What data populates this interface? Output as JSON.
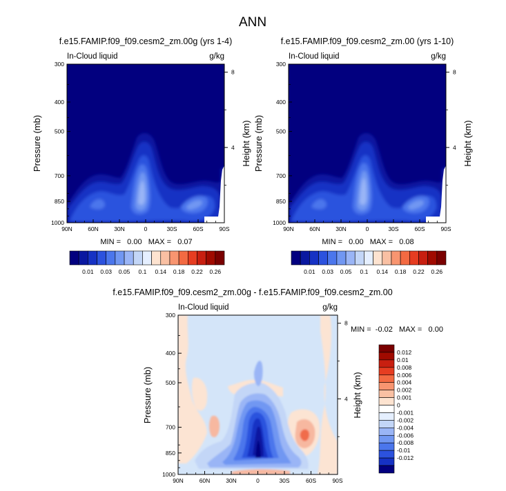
{
  "figure_title": "ANN",
  "colors": {
    "ramp": [
      "#02007f",
      "#0a18a0",
      "#1632c4",
      "#2c52de",
      "#4b76ec",
      "#7197f2",
      "#9ab5f6",
      "#c3d6f7",
      "#e5efff",
      "#fde3d0",
      "#f9c0a3",
      "#f89570",
      "#f36a42",
      "#e63d21",
      "#c81f10",
      "#a00a00",
      "#7a0000"
    ],
    "diff_zero": "#d4e5f9",
    "diff_pos_light": "#fce4d3",
    "diff_pos_mid": "#f7b8a0",
    "diff_pos_strong": "#f06c4c"
  },
  "chart_data": [
    {
      "type": "heatmap",
      "id": "panel-a",
      "title": "f.e15.FAMIP.f09_f09.cesm2_zm.00g (yrs 1-4)",
      "left_label": "In-Cloud liquid",
      "right_label": "g/kg",
      "ylabel": "Pressure (mb)",
      "ylabel_right": "Height (km)",
      "x_ticks": [
        "90N",
        "60N",
        "30N",
        "0",
        "30S",
        "60S",
        "90S"
      ],
      "y_ticks": [
        "300",
        "400",
        "500",
        "700",
        "850",
        "1000"
      ],
      "y_ticks_right": [
        "8",
        "4"
      ],
      "ylim": [
        1000,
        300
      ],
      "stats": "MIN =   0.00   MAX =   0.07",
      "colorbar_labels": [
        "0.01",
        "0.03",
        "0.05",
        "0.1",
        "0.14",
        "0.18",
        "0.22",
        "0.26"
      ]
    },
    {
      "type": "heatmap",
      "id": "panel-b",
      "title": "f.e15.FAMIP.f09_f09.cesm2_zm.00 (yrs 1-10)",
      "left_label": "In-Cloud liquid",
      "right_label": "g/kg",
      "ylabel": "Pressure (mb)",
      "ylabel_right": "Height (km)",
      "x_ticks": [
        "90N",
        "60N",
        "30N",
        "0",
        "30S",
        "60S",
        "90S"
      ],
      "y_ticks": [
        "300",
        "400",
        "500",
        "700",
        "850",
        "1000"
      ],
      "y_ticks_right": [
        "8",
        "4"
      ],
      "ylim": [
        1000,
        300
      ],
      "stats": "MIN =   0.00   MAX =   0.08",
      "colorbar_labels": [
        "0.01",
        "0.03",
        "0.05",
        "0.1",
        "0.14",
        "0.18",
        "0.22",
        "0.26"
      ]
    },
    {
      "type": "heatmap",
      "id": "panel-c",
      "title": "f.e15.FAMIP.f09_f09.cesm2_zm.00g - f.e15.FAMIP.f09_f09.cesm2_zm.00",
      "left_label": "In-Cloud liquid",
      "right_label": "g/kg",
      "ylabel": "Pressure (mb)",
      "ylabel_right": "Height (km)",
      "x_ticks": [
        "90N",
        "60N",
        "30N",
        "0",
        "30S",
        "60S",
        "90S"
      ],
      "y_ticks": [
        "300",
        "400",
        "500",
        "700",
        "850",
        "1000"
      ],
      "y_ticks_right": [
        "8",
        "4"
      ],
      "ylim": [
        1000,
        300
      ],
      "stats": "MIN =  -0.02   MAX =   0.00",
      "colorbar_labels": [
        "0.012",
        "0.01",
        "0.008",
        "0.006",
        "0.004",
        "0.002",
        "0.001",
        "0",
        "-0.001",
        "-0.002",
        "-0.004",
        "-0.006",
        "-0.008",
        "-0.01",
        "-0.012"
      ]
    }
  ]
}
